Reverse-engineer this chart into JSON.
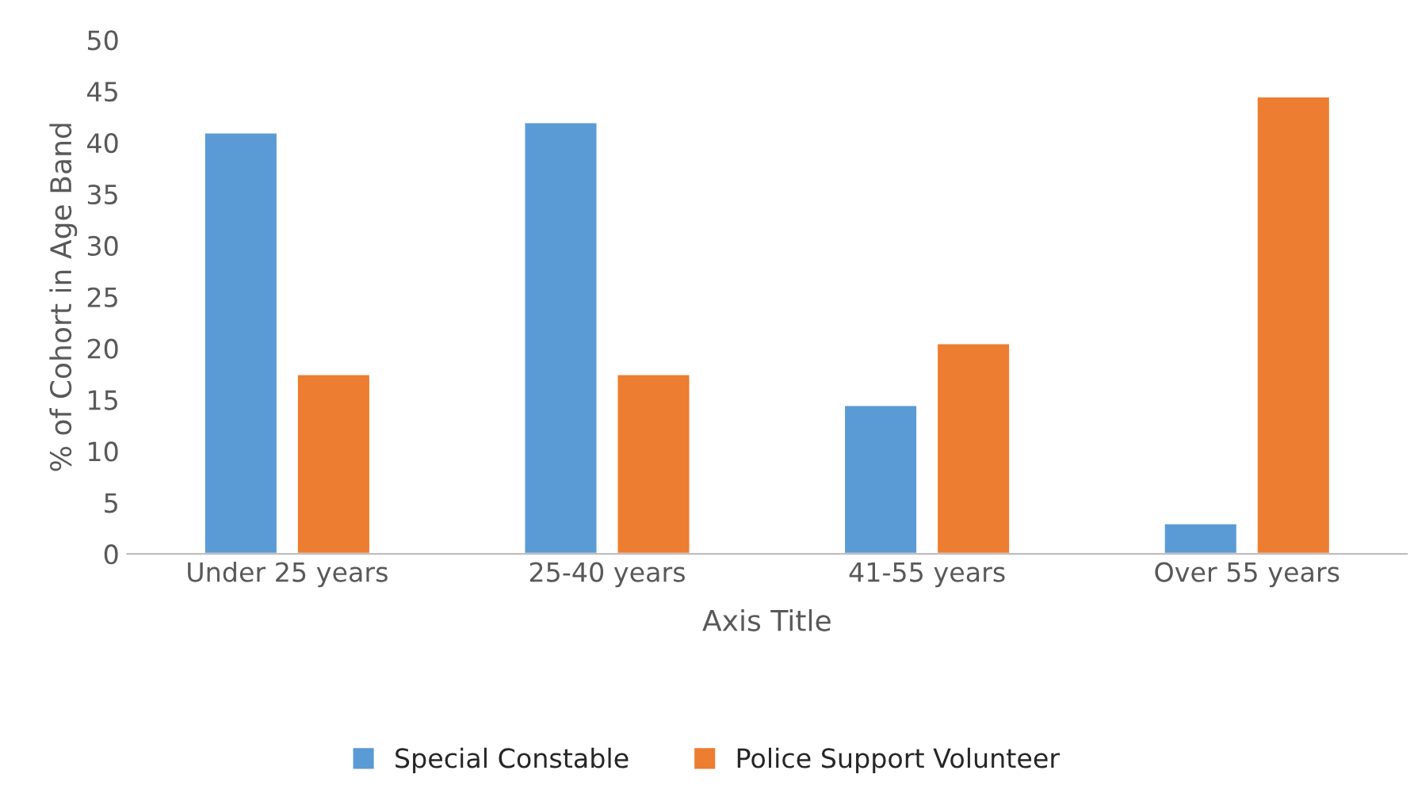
{
  "chart_data": {
    "type": "bar",
    "xlabel": "Axis Title",
    "ylabel": "% of Cohort in Age Band",
    "categories": [
      "Under 25 years",
      "25-40 years",
      "41-55 years",
      "Over 55 years"
    ],
    "series": [
      {
        "name": "Special Constable",
        "color": "#5b9bd5",
        "values": [
          41,
          42,
          14.5,
          3
        ]
      },
      {
        "name": "Police Support Volunteer",
        "color": "#ed7d31",
        "values": [
          17.5,
          17.5,
          20.5,
          44.5
        ]
      }
    ],
    "ylim": [
      0,
      50
    ],
    "yticks": [
      0,
      5,
      10,
      15,
      20,
      25,
      30,
      35,
      40,
      45,
      50
    ],
    "grid": false,
    "legend": "bottom"
  }
}
